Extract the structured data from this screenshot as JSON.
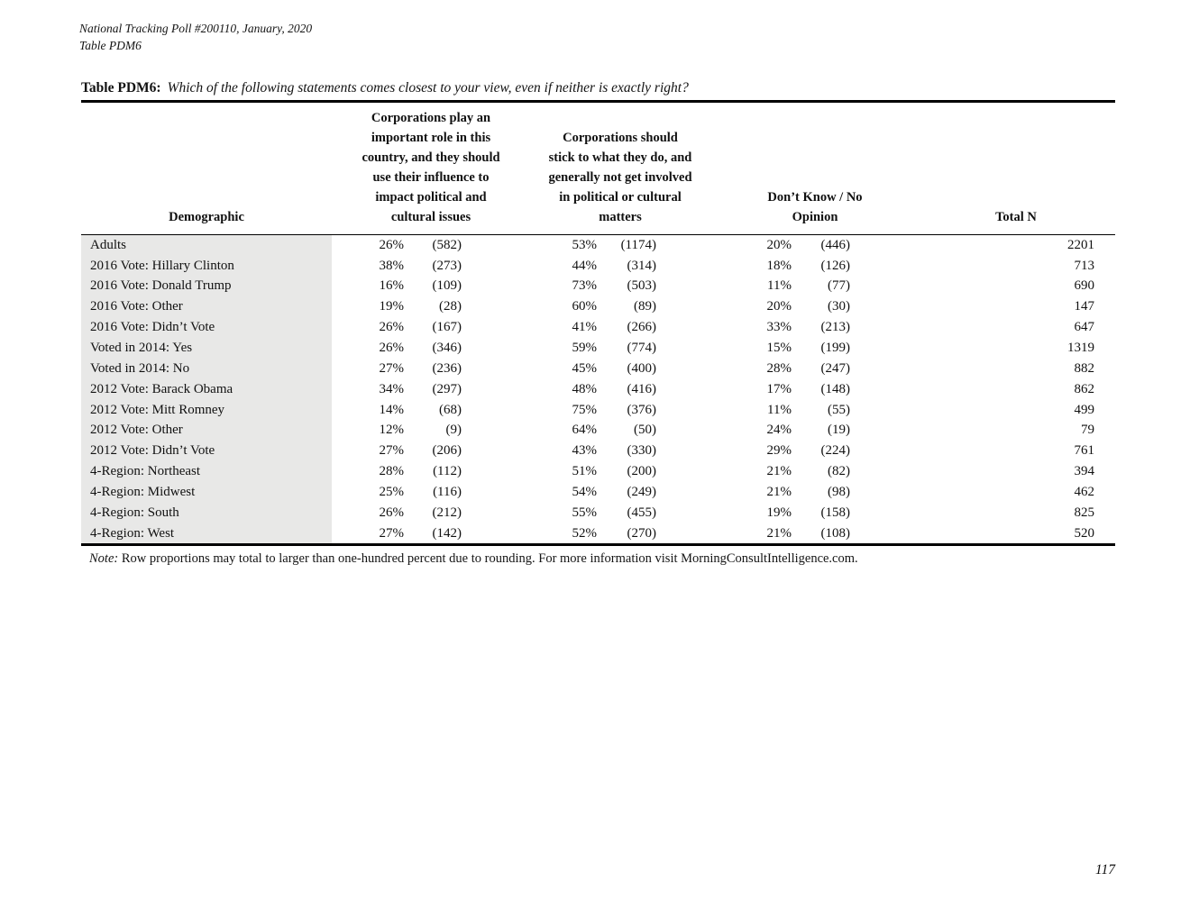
{
  "header": {
    "line1": "National Tracking Poll #200110, January, 2020",
    "line2": "Table PDM6"
  },
  "title": {
    "label": "Table PDM6:",
    "question": "Which of the following statements comes closest to your view, even if neither is exactly right?"
  },
  "table": {
    "columns": {
      "demographic": "Demographic",
      "col1_lines": [
        "Corporations play an",
        "important role in this",
        "country, and they should",
        "use their influence to",
        "impact political and",
        "cultural issues"
      ],
      "col2_lines": [
        "Corporations should",
        "stick to what they do, and",
        "generally not get involved",
        "in political or cultural",
        "matters"
      ],
      "col3_lines": [
        "Don’t Know / No",
        "Opinion"
      ],
      "total": "Total N"
    },
    "rows": [
      {
        "label": "Adults",
        "pct1": "26%",
        "n1": "(582)",
        "pct2": "53%",
        "n2": "(1174)",
        "pct3": "20%",
        "n3": "(446)",
        "total": "2201"
      },
      {
        "label": "2016 Vote: Hillary Clinton",
        "pct1": "38%",
        "n1": "(273)",
        "pct2": "44%",
        "n2": "(314)",
        "pct3": "18%",
        "n3": "(126)",
        "total": "713"
      },
      {
        "label": "2016 Vote: Donald Trump",
        "pct1": "16%",
        "n1": "(109)",
        "pct2": "73%",
        "n2": "(503)",
        "pct3": "11%",
        "n3": "(77)",
        "total": "690"
      },
      {
        "label": "2016 Vote: Other",
        "pct1": "19%",
        "n1": "(28)",
        "pct2": "60%",
        "n2": "(89)",
        "pct3": "20%",
        "n3": "(30)",
        "total": "147"
      },
      {
        "label": "2016 Vote: Didn’t Vote",
        "pct1": "26%",
        "n1": "(167)",
        "pct2": "41%",
        "n2": "(266)",
        "pct3": "33%",
        "n3": "(213)",
        "total": "647"
      },
      {
        "label": "Voted in 2014: Yes",
        "pct1": "26%",
        "n1": "(346)",
        "pct2": "59%",
        "n2": "(774)",
        "pct3": "15%",
        "n3": "(199)",
        "total": "1319"
      },
      {
        "label": "Voted in 2014: No",
        "pct1": "27%",
        "n1": "(236)",
        "pct2": "45%",
        "n2": "(400)",
        "pct3": "28%",
        "n3": "(247)",
        "total": "882"
      },
      {
        "label": "2012 Vote: Barack Obama",
        "pct1": "34%",
        "n1": "(297)",
        "pct2": "48%",
        "n2": "(416)",
        "pct3": "17%",
        "n3": "(148)",
        "total": "862"
      },
      {
        "label": "2012 Vote: Mitt Romney",
        "pct1": "14%",
        "n1": "(68)",
        "pct2": "75%",
        "n2": "(376)",
        "pct3": "11%",
        "n3": "(55)",
        "total": "499"
      },
      {
        "label": "2012 Vote: Other",
        "pct1": "12%",
        "n1": "(9)",
        "pct2": "64%",
        "n2": "(50)",
        "pct3": "24%",
        "n3": "(19)",
        "total": "79"
      },
      {
        "label": "2012 Vote: Didn’t Vote",
        "pct1": "27%",
        "n1": "(206)",
        "pct2": "43%",
        "n2": "(330)",
        "pct3": "29%",
        "n3": "(224)",
        "total": "761"
      },
      {
        "label": "4-Region: Northeast",
        "pct1": "28%",
        "n1": "(112)",
        "pct2": "51%",
        "n2": "(200)",
        "pct3": "21%",
        "n3": "(82)",
        "total": "394"
      },
      {
        "label": "4-Region: Midwest",
        "pct1": "25%",
        "n1": "(116)",
        "pct2": "54%",
        "n2": "(249)",
        "pct3": "21%",
        "n3": "(98)",
        "total": "462"
      },
      {
        "label": "4-Region: South",
        "pct1": "26%",
        "n1": "(212)",
        "pct2": "55%",
        "n2": "(455)",
        "pct3": "19%",
        "n3": "(158)",
        "total": "825"
      },
      {
        "label": "4-Region: West",
        "pct1": "27%",
        "n1": "(142)",
        "pct2": "52%",
        "n2": "(270)",
        "pct3": "21%",
        "n3": "(108)",
        "total": "520"
      }
    ]
  },
  "note": {
    "label": "Note:",
    "text": "Row proportions may total to larger than one-hundred percent due to rounding. For more information visit MorningConsultIntelligence.com."
  },
  "page_number": "117",
  "colors": {
    "demographic_shading": "#e8e8e7",
    "rule": "#000000",
    "text": "#111111"
  }
}
